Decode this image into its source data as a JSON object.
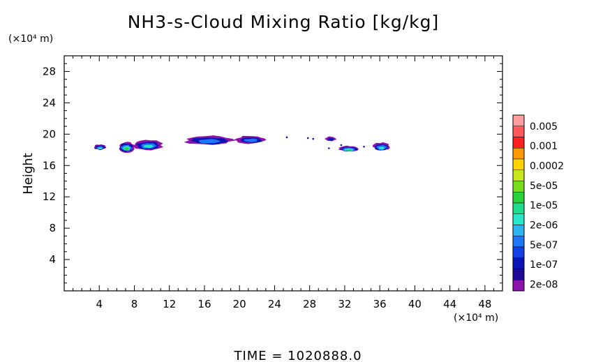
{
  "chart_data": {
    "type": "heatmap",
    "title": "NH3-s-Cloud Mixing Ratio [kg/kg]",
    "ylabel": "Height",
    "xlabel": "",
    "x_unit": "(×10⁴ m)",
    "y_unit": "(×10⁴ m)",
    "xlim": [
      0,
      50
    ],
    "ylim": [
      0,
      30
    ],
    "x_ticks": [
      4,
      8,
      12,
      16,
      20,
      24,
      28,
      32,
      36,
      40,
      44,
      48
    ],
    "y_ticks": [
      4,
      8,
      12,
      16,
      20,
      24,
      28
    ],
    "grid": false,
    "time_text": "TIME = 1020888.0",
    "colorbar": {
      "labels": [
        "0.005",
        "0.001",
        "0.0002",
        "5e-05",
        "1e-05",
        "2e-06",
        "5e-07",
        "1e-07",
        "2e-08"
      ],
      "colors": [
        "#ff9f9f",
        "#ff5a5a",
        "#ff2020",
        "#ff9900",
        "#ffd400",
        "#c8e61e",
        "#78dc1e",
        "#28d23c",
        "#1edc8c",
        "#28e6c8",
        "#2db4f0",
        "#1e78f5",
        "#1440e6",
        "#0a14b4",
        "#1e0a96",
        "#8c14aa"
      ]
    },
    "cloud_regions": [
      {
        "x": [
          3.4,
          4.8
        ],
        "y": [
          18.0,
          18.7
        ],
        "max_class": "2e-06"
      },
      {
        "x": [
          6.2,
          8.0
        ],
        "y": [
          17.7,
          19.0
        ],
        "max_class": "1e-05"
      },
      {
        "x": [
          8.0,
          11.2
        ],
        "y": [
          18.0,
          19.2
        ],
        "max_class": "2e-06"
      },
      {
        "x": [
          13.8,
          19.2
        ],
        "y": [
          18.6,
          19.8
        ],
        "max_class": "5e-07"
      },
      {
        "x": [
          19.6,
          23.0
        ],
        "y": [
          18.8,
          19.8
        ],
        "max_class": "5e-07"
      },
      {
        "x": [
          29.8,
          31.0
        ],
        "y": [
          19.1,
          19.7
        ],
        "max_class": "1e-07"
      },
      {
        "x": [
          31.3,
          33.6
        ],
        "y": [
          17.8,
          18.5
        ],
        "max_class": "1e-05"
      },
      {
        "x": [
          35.2,
          37.2
        ],
        "y": [
          17.9,
          18.9
        ],
        "max_class": "2e-06"
      }
    ]
  }
}
